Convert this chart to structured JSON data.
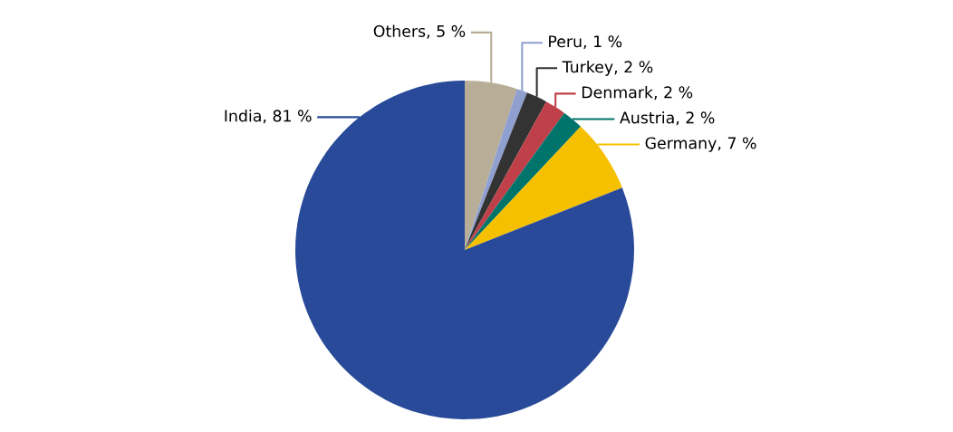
{
  "chart_data": {
    "type": "pie",
    "categories": [
      "Others",
      "Peru",
      "Turkey",
      "Denmark",
      "Austria",
      "Germany",
      "India"
    ],
    "values": [
      5,
      1,
      2,
      2,
      2,
      7,
      81
    ],
    "value_labels": [
      "5 %",
      "1 %",
      "2 %",
      "2 %",
      "2 %",
      "7 %",
      "81 %"
    ],
    "colors": [
      "#b8ae98",
      "#8fa0d0",
      "#333333",
      "#c0404a",
      "#00736b",
      "#f5c000",
      "#284a98"
    ]
  }
}
